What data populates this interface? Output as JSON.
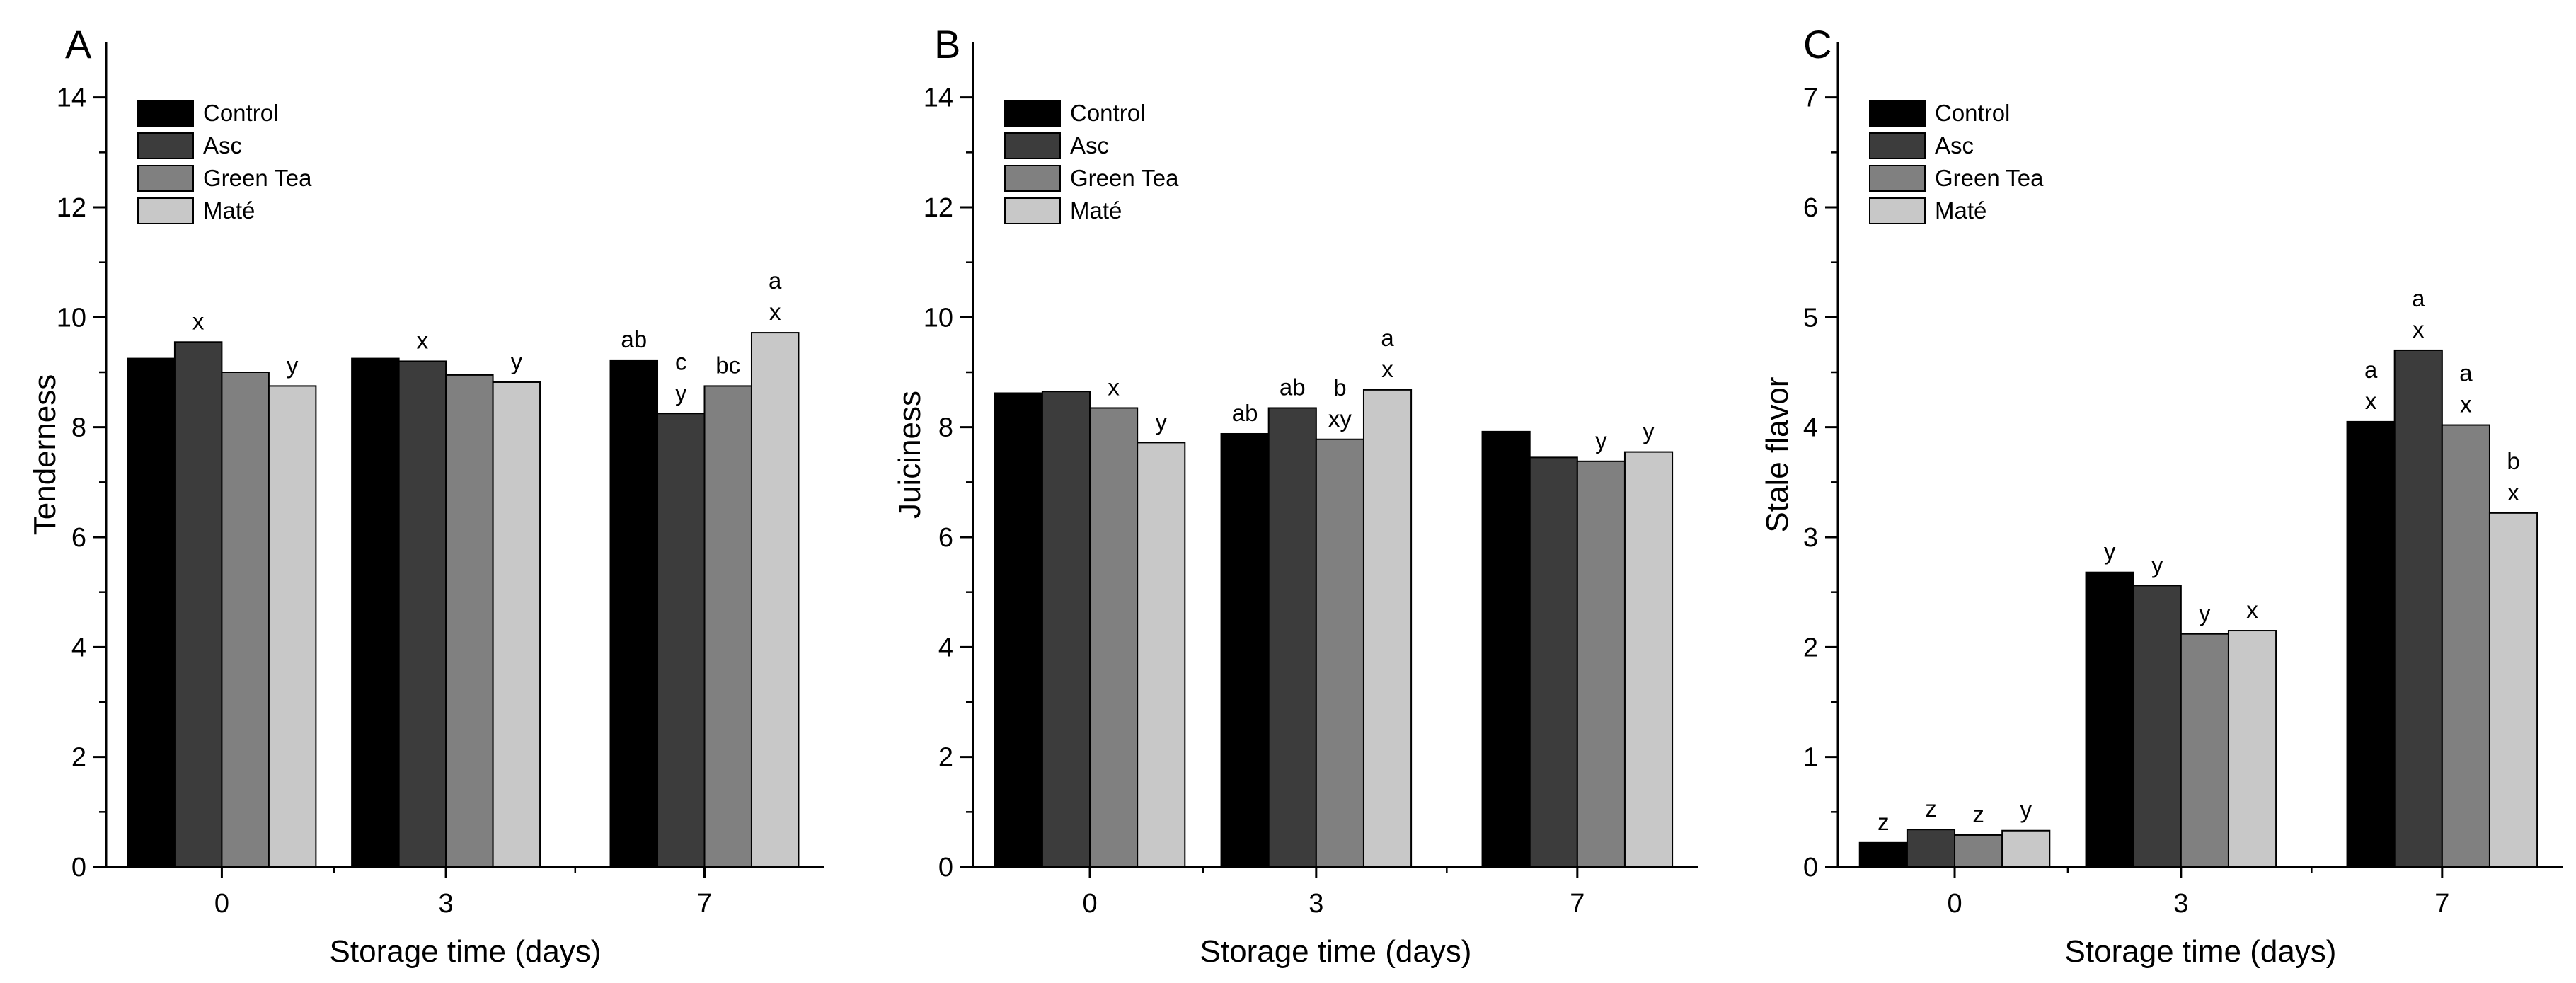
{
  "colors": {
    "Control": "#000000",
    "Asc": "#3c3c3c",
    "Green Tea": "#808080",
    "Maté": "#c8c8c8"
  },
  "chart_data": [
    {
      "panel": "A",
      "type": "bar",
      "xlabel": "Storage time (days)",
      "ylabel": "Tenderness",
      "categories": [
        "0",
        "3",
        "7"
      ],
      "ylim": [
        0,
        15
      ],
      "yticks": [
        "0",
        "2",
        "4",
        "6",
        "8",
        "10",
        "12",
        "14"
      ],
      "legend": [
        "Control",
        "Asc",
        "Green Tea",
        "Maté"
      ],
      "legend_position": "top-left",
      "series": [
        {
          "name": "Control",
          "values": [
            9.25,
            9.25,
            9.22
          ],
          "labels": [
            [],
            [],
            [
              "ab"
            ]
          ]
        },
        {
          "name": "Asc",
          "values": [
            9.55,
            9.2,
            8.25
          ],
          "labels": [
            [
              "x"
            ],
            [
              "x"
            ],
            [
              "c",
              "y"
            ]
          ]
        },
        {
          "name": "Green Tea",
          "values": [
            9.0,
            8.95,
            8.75
          ],
          "labels": [
            [],
            [],
            [
              "bc"
            ]
          ]
        },
        {
          "name": "Maté",
          "values": [
            8.75,
            8.82,
            9.72
          ],
          "labels": [
            [
              "y"
            ],
            [
              "y"
            ],
            [
              "a",
              "x"
            ]
          ]
        }
      ]
    },
    {
      "panel": "B",
      "type": "bar",
      "xlabel": "Storage time (days)",
      "ylabel": "Juiciness",
      "categories": [
        "0",
        "3",
        "7"
      ],
      "ylim": [
        0,
        15
      ],
      "yticks": [
        "0",
        "2",
        "4",
        "6",
        "8",
        "10",
        "12",
        "14"
      ],
      "legend": [
        "Control",
        "Asc",
        "Green Tea",
        "Maté"
      ],
      "legend_position": "top-left",
      "series": [
        {
          "name": "Control",
          "values": [
            8.62,
            7.88,
            7.92
          ],
          "labels": [
            [],
            [
              "ab"
            ],
            []
          ]
        },
        {
          "name": "Asc",
          "values": [
            8.65,
            8.35,
            7.45
          ],
          "labels": [
            [],
            [
              "ab"
            ],
            []
          ]
        },
        {
          "name": "Green Tea",
          "values": [
            8.35,
            7.78,
            7.38
          ],
          "labels": [
            [
              "x"
            ],
            [
              "b",
              "xy"
            ],
            [
              "y"
            ]
          ]
        },
        {
          "name": "Maté",
          "values": [
            7.72,
            8.68,
            7.55
          ],
          "labels": [
            [
              "y"
            ],
            [
              "a",
              "x"
            ],
            [
              "y"
            ]
          ]
        }
      ]
    },
    {
      "panel": "C",
      "type": "bar",
      "xlabel": "Storage time (days)",
      "ylabel": "Stale flavor",
      "categories": [
        "0",
        "3",
        "7"
      ],
      "ylim": [
        0,
        7.5
      ],
      "yticks": [
        "0",
        "1",
        "2",
        "3",
        "4",
        "5",
        "6",
        "7"
      ],
      "legend": [
        "Control",
        "Asc",
        "Green Tea",
        "Maté"
      ],
      "legend_position": "top-left",
      "series": [
        {
          "name": "Control",
          "values": [
            0.22,
            2.68,
            4.05
          ],
          "labels": [
            [
              "z"
            ],
            [
              "y"
            ],
            [
              "a",
              "x"
            ]
          ]
        },
        {
          "name": "Asc",
          "values": [
            0.34,
            2.56,
            4.7
          ],
          "labels": [
            [
              "z"
            ],
            [
              "y"
            ],
            [
              "a",
              "x"
            ]
          ]
        },
        {
          "name": "Green Tea",
          "values": [
            0.29,
            2.12,
            4.02
          ],
          "labels": [
            [
              "z"
            ],
            [
              "y"
            ],
            [
              "a",
              "x"
            ]
          ]
        },
        {
          "name": "Maté",
          "values": [
            0.33,
            2.15,
            3.22
          ],
          "labels": [
            [
              "y"
            ],
            [
              "x"
            ],
            [
              "b",
              "x"
            ]
          ]
        }
      ]
    }
  ]
}
